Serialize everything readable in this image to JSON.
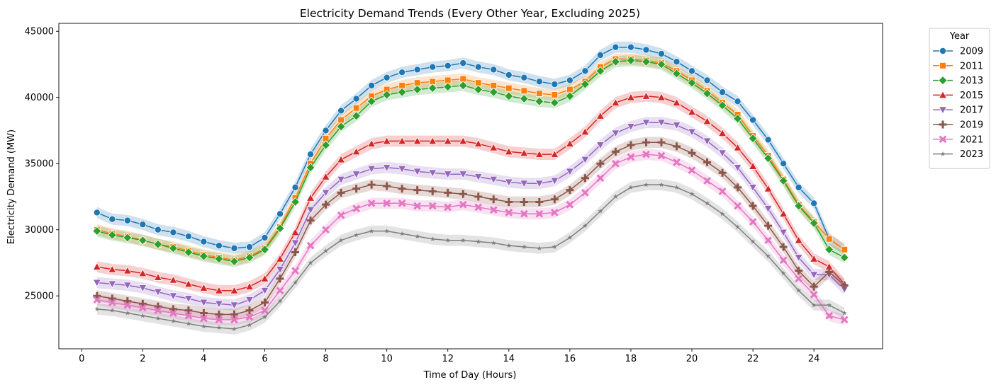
{
  "chart_data": {
    "type": "line",
    "title": "Electricity Demand Trends (Every Other Year, Excluding 2025)",
    "xlabel": "Time of Day (Hours)",
    "ylabel": "Electricity Demand (MW)",
    "xlim": [
      -0.75,
      26.25
    ],
    "ylim": [
      21000,
      45600
    ],
    "xticks": [
      0,
      2,
      4,
      6,
      8,
      10,
      12,
      14,
      16,
      18,
      20,
      22,
      24
    ],
    "yticks": [
      25000,
      30000,
      35000,
      40000,
      45000
    ],
    "grid": false,
    "confidence_band": true,
    "legend": {
      "title": "Year",
      "placement": "outside-top-right"
    },
    "x": [
      0.5,
      1,
      1.5,
      2,
      2.5,
      3,
      3.5,
      4,
      4.5,
      5,
      5.5,
      6,
      6.5,
      7,
      7.5,
      8,
      8.5,
      9,
      9.5,
      10,
      10.5,
      11,
      11.5,
      12,
      12.5,
      13,
      13.5,
      14,
      14.5,
      15,
      15.5,
      16,
      16.5,
      17,
      17.5,
      18,
      18.5,
      19,
      19.5,
      20,
      20.5,
      21,
      21.5,
      22,
      22.5,
      23,
      23.5,
      24,
      24.5,
      25
    ],
    "series": [
      {
        "name": "2009",
        "color": "#1f77b4",
        "marker": "circle",
        "values": [
          31300,
          30800,
          30700,
          30400,
          30000,
          29800,
          29500,
          29100,
          28800,
          28600,
          28700,
          29400,
          31200,
          33200,
          35700,
          37500,
          39000,
          39900,
          40900,
          41500,
          41900,
          42100,
          42300,
          42400,
          42600,
          42300,
          42100,
          41700,
          41500,
          41200,
          41000,
          41300,
          42000,
          43200,
          43800,
          43800,
          43600,
          43300,
          42700,
          42000,
          41300,
          40400,
          39700,
          38300,
          36800,
          35000,
          33200,
          32000,
          29300,
          28500
        ]
      },
      {
        "name": "2011",
        "color": "#ff7f0e",
        "marker": "square",
        "values": [
          30000,
          29700,
          29500,
          29200,
          28900,
          28700,
          28400,
          28100,
          27900,
          27700,
          28000,
          28600,
          30200,
          32400,
          35000,
          36900,
          38300,
          39200,
          40100,
          40600,
          40900,
          41100,
          41200,
          41300,
          41400,
          41100,
          40900,
          40700,
          40500,
          40300,
          40200,
          40600,
          41200,
          42300,
          42900,
          42900,
          42800,
          42600,
          42000,
          41300,
          40500,
          39600,
          38700,
          37100,
          35600,
          33800,
          31900,
          30600,
          29300,
          28500
        ]
      },
      {
        "name": "2013",
        "color": "#2ca02c",
        "marker": "diamond",
        "values": [
          29900,
          29600,
          29400,
          29200,
          28900,
          28600,
          28300,
          28000,
          27800,
          27600,
          27900,
          28500,
          30100,
          32100,
          34700,
          36400,
          37800,
          38600,
          39700,
          40200,
          40400,
          40600,
          40700,
          40800,
          40900,
          40600,
          40400,
          40100,
          39900,
          39700,
          39600,
          40100,
          41000,
          42000,
          42700,
          42800,
          42700,
          42500,
          41800,
          41100,
          40300,
          39400,
          38400,
          36900,
          35400,
          33700,
          31800,
          30500,
          28500,
          27900
        ]
      },
      {
        "name": "2015",
        "color": "#d62728",
        "marker": "triangle-up",
        "values": [
          27200,
          27000,
          26900,
          26700,
          26400,
          26200,
          25900,
          25600,
          25400,
          25400,
          25700,
          26300,
          27800,
          29800,
          32400,
          34000,
          35300,
          35900,
          36500,
          36700,
          36700,
          36700,
          36700,
          36700,
          36700,
          36500,
          36200,
          35900,
          35800,
          35700,
          35700,
          36500,
          37400,
          38600,
          39600,
          40000,
          40100,
          40000,
          39600,
          38900,
          38200,
          37300,
          36200,
          34800,
          33100,
          31200,
          29200,
          27800,
          27200,
          25900
        ]
      },
      {
        "name": "2017",
        "color": "#9467bd",
        "marker": "triangle-down",
        "values": [
          26000,
          25900,
          25800,
          25600,
          25300,
          25000,
          24800,
          24500,
          24400,
          24300,
          24700,
          25400,
          27000,
          29000,
          31500,
          32800,
          33800,
          34200,
          34600,
          34700,
          34600,
          34400,
          34300,
          34200,
          34200,
          34000,
          33800,
          33600,
          33500,
          33500,
          33700,
          34400,
          35300,
          36400,
          37300,
          37800,
          38100,
          38100,
          37900,
          37400,
          36700,
          35800,
          34700,
          33200,
          31600,
          29800,
          27900,
          26600,
          26600,
          25500
        ]
      },
      {
        "name": "2019",
        "color": "#8c564b",
        "marker": "plus",
        "values": [
          25000,
          24800,
          24600,
          24400,
          24200,
          24000,
          23900,
          23700,
          23600,
          23600,
          23900,
          24500,
          26300,
          28300,
          30700,
          31900,
          32800,
          33100,
          33400,
          33300,
          33100,
          33000,
          32900,
          32800,
          32700,
          32500,
          32300,
          32100,
          32100,
          32100,
          32300,
          33000,
          33900,
          35000,
          35900,
          36400,
          36600,
          36600,
          36300,
          35800,
          35100,
          34300,
          33200,
          31800,
          30300,
          28700,
          26900,
          25700,
          26800,
          25800
        ]
      },
      {
        "name": "2021",
        "color": "#e377c2",
        "marker": "x",
        "values": [
          24700,
          24500,
          24300,
          24100,
          23900,
          23700,
          23500,
          23300,
          23200,
          23200,
          23400,
          23900,
          25400,
          26900,
          28800,
          30000,
          31100,
          31600,
          32000,
          32000,
          32000,
          31800,
          31800,
          31700,
          31900,
          31700,
          31500,
          31300,
          31200,
          31200,
          31300,
          31900,
          32800,
          33900,
          35000,
          35500,
          35700,
          35600,
          35100,
          34500,
          33700,
          32900,
          31800,
          30600,
          29200,
          27700,
          26300,
          25100,
          23500,
          23200
        ]
      },
      {
        "name": "2023",
        "color": "#7f7f7f",
        "marker": "star",
        "values": [
          24000,
          23900,
          23700,
          23500,
          23300,
          23100,
          22900,
          22700,
          22600,
          22500,
          22800,
          23400,
          24600,
          26000,
          27500,
          28400,
          29200,
          29600,
          29900,
          29900,
          29700,
          29500,
          29300,
          29200,
          29200,
          29100,
          29000,
          28800,
          28700,
          28600,
          28700,
          29400,
          30300,
          31400,
          32500,
          33200,
          33400,
          33400,
          33200,
          32700,
          32000,
          31200,
          30200,
          29100,
          28000,
          26700,
          25400,
          24300,
          24300,
          23700
        ]
      }
    ]
  }
}
